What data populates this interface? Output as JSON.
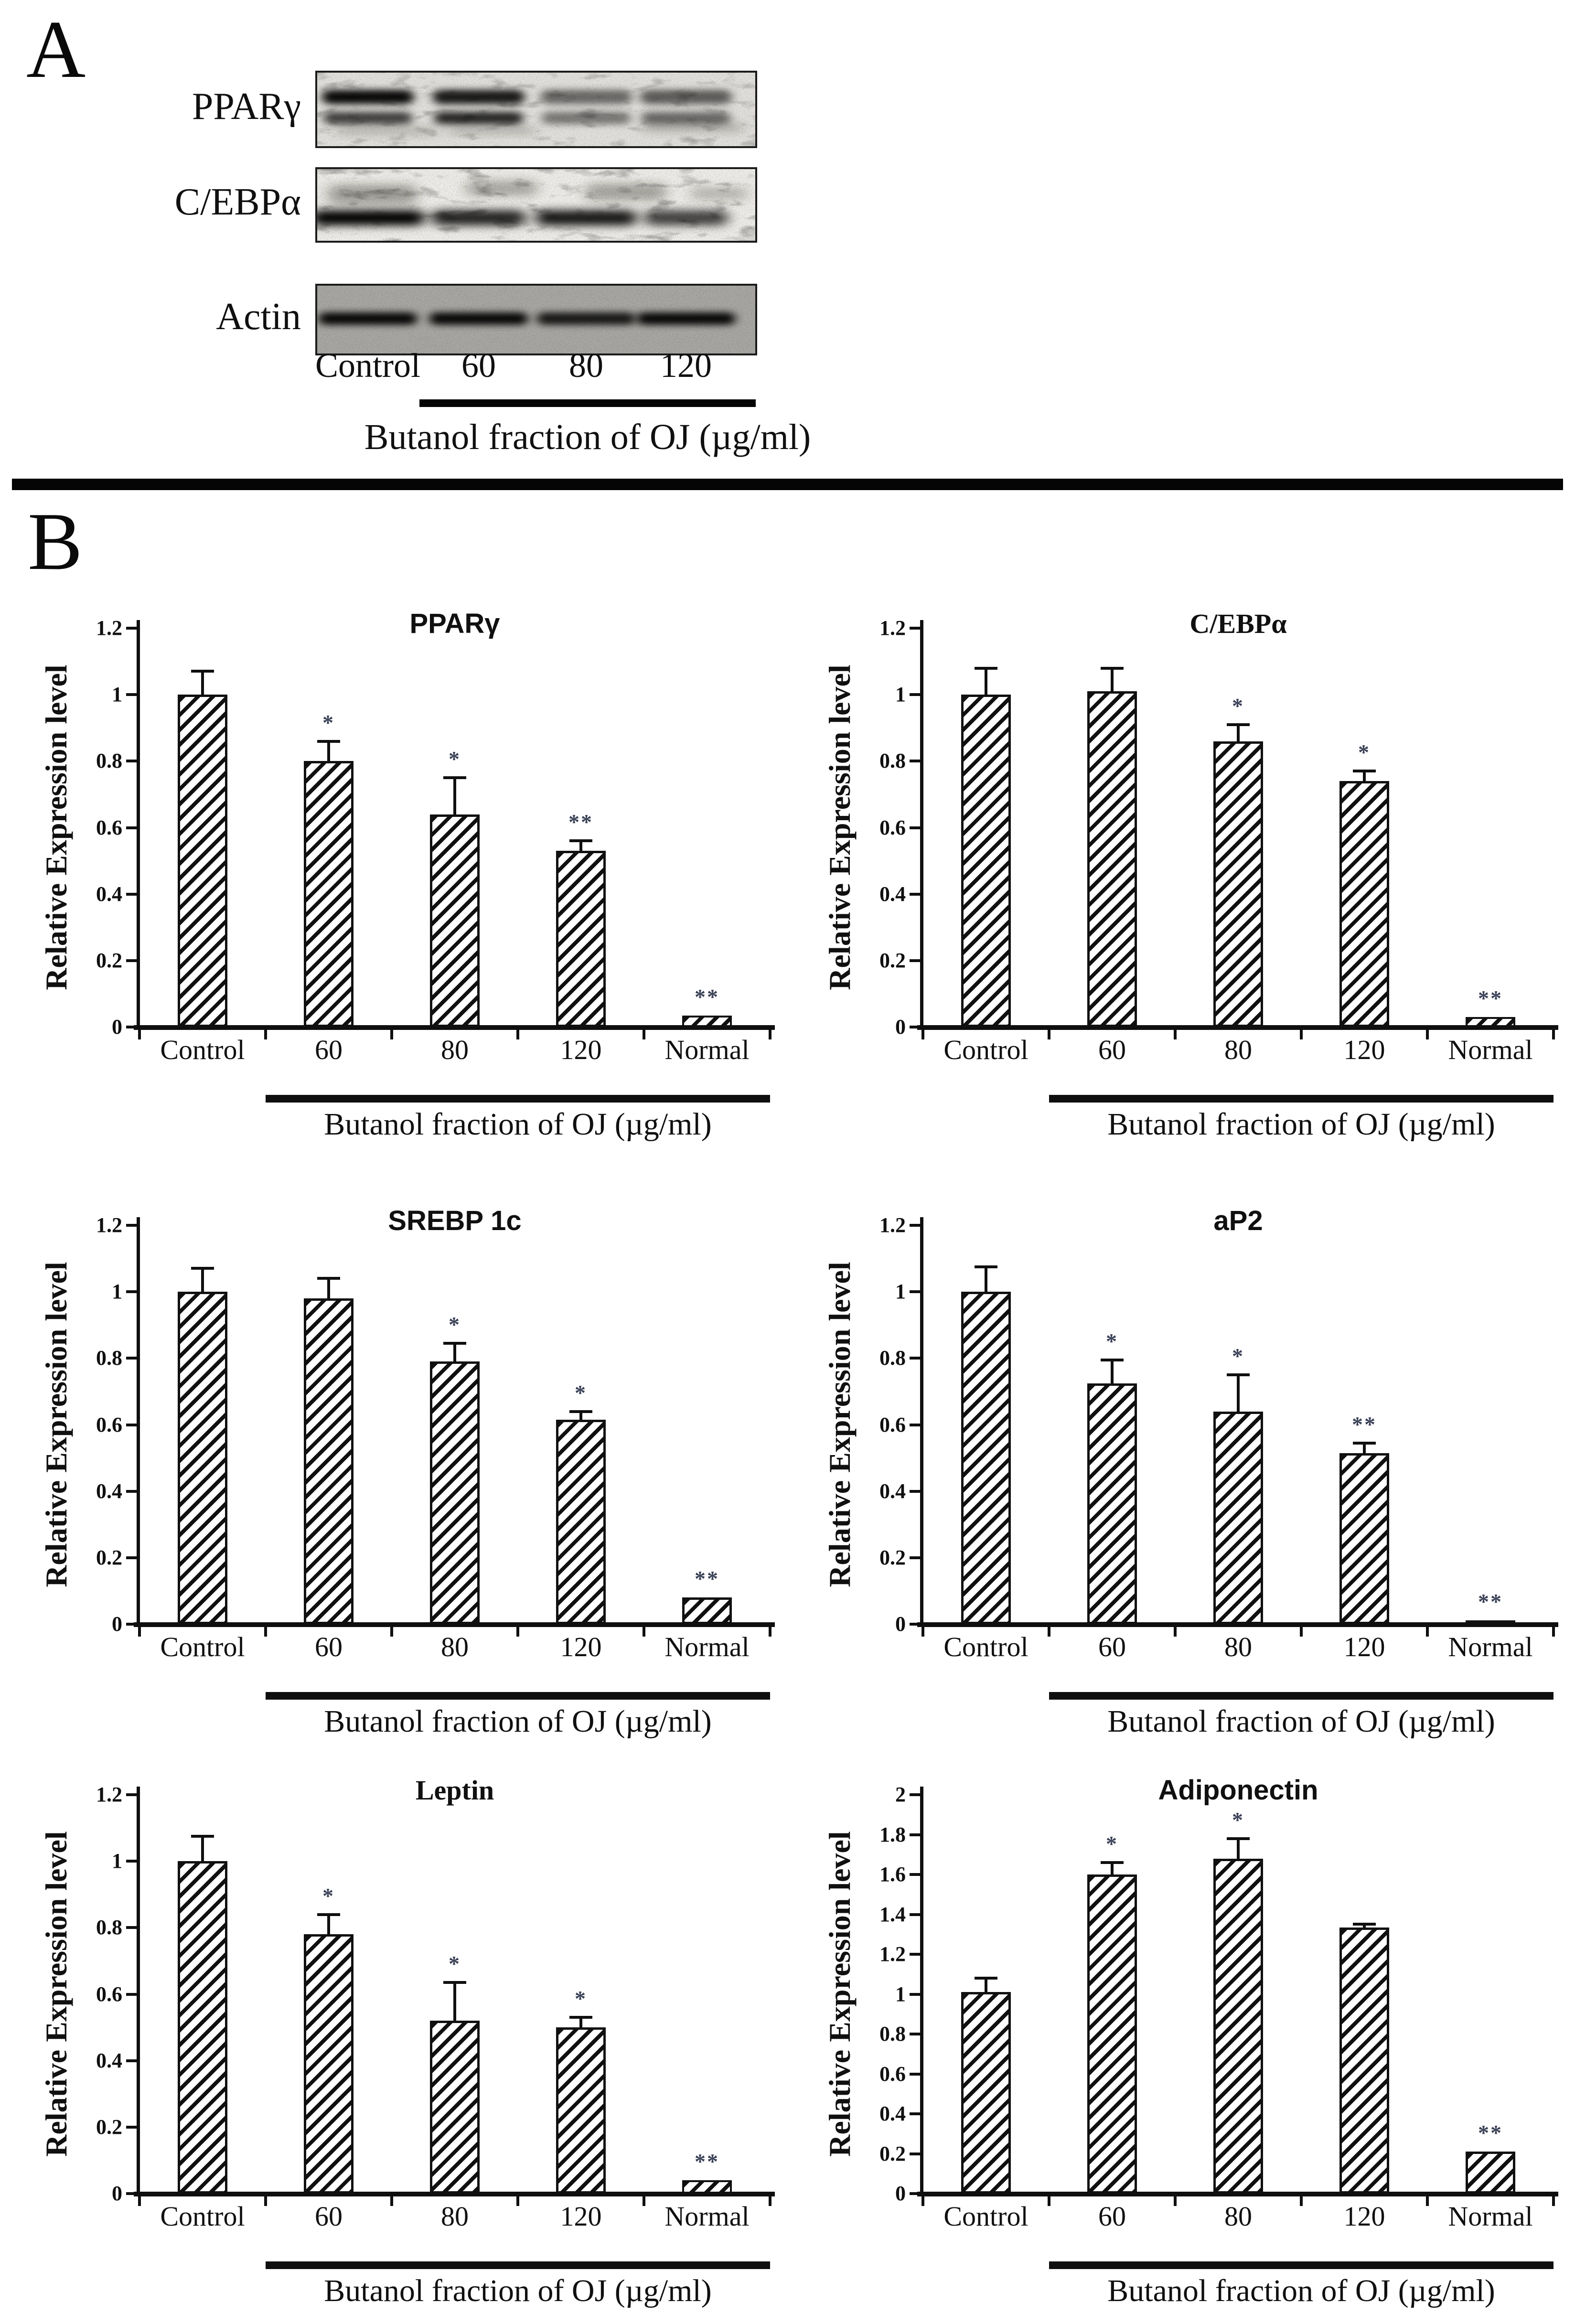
{
  "panel_a": {
    "label": "A",
    "lane_labels": [
      "Control",
      "60",
      "80",
      "120"
    ],
    "treatment_label": "Butanol fraction of OJ (µg/ml)",
    "blots": [
      {
        "label": "PPARγ",
        "bands": [
          [
            0.95,
            0.88,
            0.52,
            0.58
          ],
          [
            0.7,
            0.82,
            0.46,
            0.52
          ]
        ]
      },
      {
        "label": "C/EBPα",
        "bands": [
          [
            1.0,
            0.85,
            0.9,
            0.72
          ]
        ]
      },
      {
        "label": "Actin",
        "bands": [
          [
            0.95,
            0.95,
            0.85,
            0.95
          ]
        ]
      }
    ]
  },
  "panel_b": {
    "label": "B"
  },
  "colors": {
    "ink": "#101010",
    "star": "#3a4156"
  },
  "chart_data": [
    {
      "type": "bar",
      "title": "PPARγ",
      "ylabel": "Relative Expression level",
      "xlabel": "Butanol fraction of OJ (µg/ml)",
      "categories": [
        "Control",
        "60",
        "80",
        "120",
        "Normal"
      ],
      "values": [
        1.0,
        0.8,
        0.64,
        0.53,
        0.035
      ],
      "errors": [
        0.07,
        0.06,
        0.11,
        0.03,
        0
      ],
      "significance": [
        "",
        "*",
        "*",
        "**",
        "**"
      ],
      "ylim": [
        0,
        1.2
      ],
      "ytick": 0.2
    },
    {
      "type": "bar",
      "title": "C/EBPα",
      "ylabel": "Relative Expression level",
      "xlabel": "Butanol fraction of OJ (µg/ml)",
      "categories": [
        "Control",
        "60",
        "80",
        "120",
        "Normal"
      ],
      "values": [
        1.0,
        1.01,
        0.86,
        0.74,
        0.03
      ],
      "errors": [
        0.08,
        0.07,
        0.05,
        0.03,
        0
      ],
      "significance": [
        "",
        "",
        "*",
        "*",
        "**"
      ],
      "ylim": [
        0,
        1.2
      ],
      "ytick": 0.2
    },
    {
      "type": "bar",
      "title": "SREBP 1c",
      "ylabel": "Relative Expression level",
      "xlabel": "Butanol fraction of OJ (µg/ml)",
      "categories": [
        "Control",
        "60",
        "80",
        "120",
        "Normal"
      ],
      "values": [
        1.0,
        0.98,
        0.79,
        0.615,
        0.08
      ],
      "errors": [
        0.07,
        0.06,
        0.055,
        0.025,
        0
      ],
      "significance": [
        "",
        "",
        "*",
        "*",
        "**"
      ],
      "ylim": [
        0,
        1.2
      ],
      "ytick": 0.2
    },
    {
      "type": "bar",
      "title": "aP2",
      "ylabel": "Relative Expression level",
      "xlabel": "Butanol fraction of OJ (µg/ml)",
      "categories": [
        "Control",
        "60",
        "80",
        "120",
        "Normal"
      ],
      "values": [
        1.0,
        0.725,
        0.64,
        0.515,
        0.012
      ],
      "errors": [
        0.075,
        0.07,
        0.11,
        0.03,
        0
      ],
      "significance": [
        "",
        "*",
        "*",
        "**",
        "**"
      ],
      "ylim": [
        0,
        1.2
      ],
      "ytick": 0.2
    },
    {
      "type": "bar",
      "title": "Leptin",
      "ylabel": "Relative Expression level",
      "xlabel": "Butanol fraction of OJ (µg/ml)",
      "categories": [
        "Control",
        "60",
        "80",
        "120",
        "Normal"
      ],
      "values": [
        1.0,
        0.78,
        0.52,
        0.5,
        0.04
      ],
      "errors": [
        0.075,
        0.06,
        0.115,
        0.03,
        0
      ],
      "significance": [
        "",
        "*",
        "*",
        "*",
        "**"
      ],
      "ylim": [
        0,
        1.2
      ],
      "ytick": 0.2
    },
    {
      "type": "bar",
      "title": "Adiponectin",
      "ylabel": "Relative Expression level",
      "xlabel": "Butanol fraction of OJ (µg/ml)",
      "categories": [
        "Control",
        "60",
        "80",
        "120",
        "Normal"
      ],
      "values": [
        1.01,
        1.6,
        1.68,
        1.335,
        0.21
      ],
      "errors": [
        0.07,
        0.06,
        0.1,
        0.015,
        0
      ],
      "significance": [
        "",
        "*",
        "*",
        "",
        "**"
      ],
      "ylim": [
        0,
        2
      ],
      "ytick": 0.2
    }
  ]
}
